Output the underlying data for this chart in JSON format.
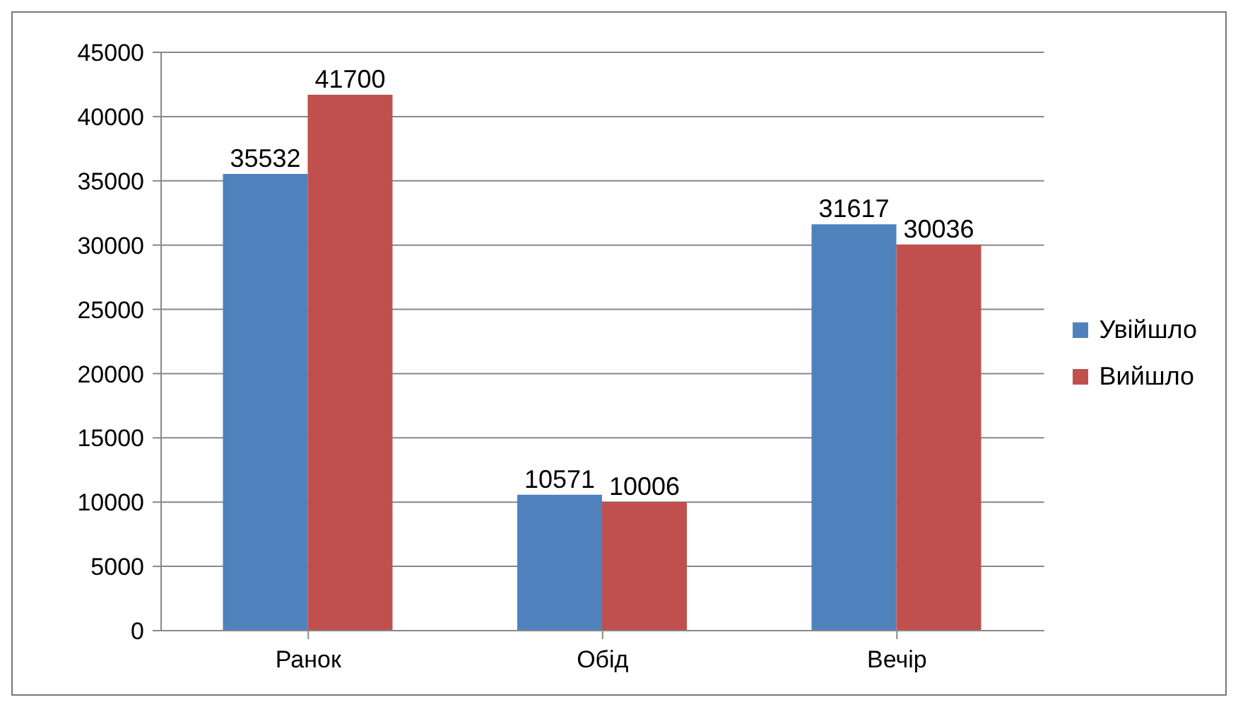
{
  "chart_data": {
    "type": "bar",
    "categories": [
      "Ранок",
      "Обід",
      "Вечір"
    ],
    "series": [
      {
        "name": "Увійшло",
        "color": "#4f81bd",
        "values": [
          35532,
          10571,
          31617
        ]
      },
      {
        "name": "Вийшло",
        "color": "#c0504d",
        "values": [
          41700,
          10006,
          30036
        ]
      }
    ],
    "ylim": [
      0,
      45000
    ],
    "yticks": [
      0,
      5000,
      10000,
      15000,
      20000,
      25000,
      30000,
      35000,
      40000,
      45000
    ],
    "grid": "y",
    "legend": "right",
    "data_labels": true
  }
}
